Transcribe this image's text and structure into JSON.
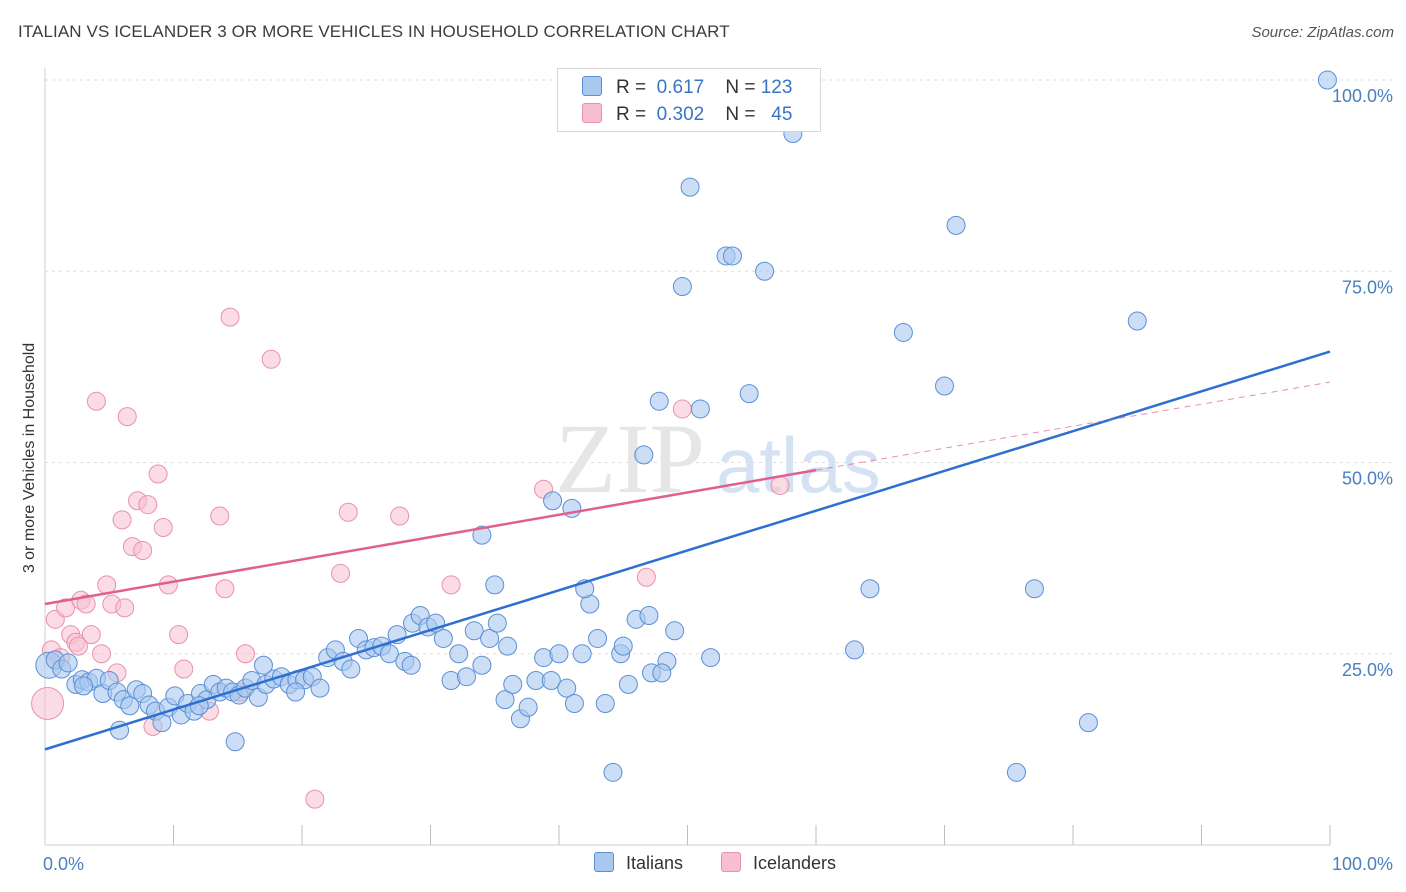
{
  "title": "ITALIAN VS ICELANDER 3 OR MORE VEHICLES IN HOUSEHOLD CORRELATION CHART",
  "source": "Source: ZipAtlas.com",
  "watermark": {
    "zip": "ZIP",
    "atlas": "atlas"
  },
  "legend": {
    "r_label": "R =",
    "n_label": "N =",
    "italians": {
      "r": "0.617",
      "n": "123"
    },
    "icelanders": {
      "r": "0.302",
      "n": "45"
    }
  },
  "colors": {
    "italians_fill": "#a9c8ee",
    "italians_stroke": "#5b8fd6",
    "italians_line": "#2f6fd0",
    "icelanders_fill": "#f7bfd0",
    "icelanders_stroke": "#e891ae",
    "icelanders_line": "#e0608d",
    "grid": "#dedede",
    "tick_text": "#4a7fc1"
  },
  "chart_data": {
    "type": "scatter",
    "title": "ITALIAN VS ICELANDER 3 OR MORE VEHICLES IN HOUSEHOLD CORRELATION CHART",
    "xlabel": "",
    "ylabel": "3 or more Vehicles in Household",
    "xlim": [
      0,
      100
    ],
    "ylim": [
      0,
      102
    ],
    "x_tick_labels": [
      "0.0%",
      "100.0%"
    ],
    "y_ticks": [
      25,
      50,
      75,
      100
    ],
    "y_tick_labels": [
      "25.0%",
      "50.0%",
      "75.0%",
      "100.0%"
    ],
    "grid": "horizontal dashed",
    "legend_position": "bottom-center",
    "series": [
      {
        "name": "Italians",
        "r": 0.617,
        "n": 123,
        "trend": {
          "x": [
            0,
            100
          ],
          "y": [
            12.5,
            64.5
          ]
        },
        "points": [
          [
            0.3,
            23.5
          ],
          [
            0.8,
            24.2
          ],
          [
            1.3,
            23.0
          ],
          [
            1.8,
            23.8
          ],
          [
            2.4,
            21.0
          ],
          [
            2.9,
            21.6
          ],
          [
            3.4,
            21.3
          ],
          [
            4.0,
            21.8
          ],
          [
            4.5,
            19.8
          ],
          [
            5.0,
            21.5
          ],
          [
            5.6,
            20.0
          ],
          [
            6.1,
            19.0
          ],
          [
            6.6,
            18.2
          ],
          [
            7.1,
            20.3
          ],
          [
            7.6,
            19.8
          ],
          [
            8.1,
            18.3
          ],
          [
            8.6,
            17.5
          ],
          [
            9.1,
            16.0
          ],
          [
            9.6,
            18.0
          ],
          [
            10.1,
            19.5
          ],
          [
            10.6,
            17.0
          ],
          [
            11.1,
            18.5
          ],
          [
            11.6,
            17.5
          ],
          [
            12.1,
            19.8
          ],
          [
            12.6,
            19.0
          ],
          [
            13.1,
            21.0
          ],
          [
            13.6,
            20.0
          ],
          [
            14.1,
            20.5
          ],
          [
            14.6,
            20.0
          ],
          [
            15.1,
            19.6
          ],
          [
            15.6,
            20.5
          ],
          [
            16.1,
            21.5
          ],
          [
            16.6,
            19.3
          ],
          [
            17.2,
            21.0
          ],
          [
            17.8,
            21.7
          ],
          [
            18.4,
            22.0
          ],
          [
            19.0,
            21.0
          ],
          [
            19.6,
            21.6
          ],
          [
            20.2,
            21.6
          ],
          [
            20.8,
            22.0
          ],
          [
            21.4,
            20.5
          ],
          [
            22.0,
            24.5
          ],
          [
            22.6,
            25.5
          ],
          [
            23.2,
            24.0
          ],
          [
            23.8,
            23.0
          ],
          [
            24.4,
            27.0
          ],
          [
            25.0,
            25.5
          ],
          [
            25.6,
            25.8
          ],
          [
            26.2,
            26.0
          ],
          [
            26.8,
            25.0
          ],
          [
            27.4,
            27.5
          ],
          [
            28.0,
            24.0
          ],
          [
            28.6,
            29.0
          ],
          [
            29.2,
            30.0
          ],
          [
            29.8,
            28.5
          ],
          [
            30.4,
            29.0
          ],
          [
            31.0,
            27.0
          ],
          [
            31.6,
            21.5
          ],
          [
            32.2,
            25.0
          ],
          [
            32.8,
            22.0
          ],
          [
            33.4,
            28.0
          ],
          [
            34.0,
            23.5
          ],
          [
            34.6,
            27.0
          ],
          [
            35.2,
            29.0
          ],
          [
            35.8,
            19.0
          ],
          [
            36.4,
            21.0
          ],
          [
            37.0,
            16.5
          ],
          [
            37.6,
            18.0
          ],
          [
            38.2,
            21.5
          ],
          [
            38.8,
            24.5
          ],
          [
            39.4,
            21.5
          ],
          [
            40.0,
            25.0
          ],
          [
            40.6,
            20.5
          ],
          [
            41.2,
            18.5
          ],
          [
            41.8,
            25.0
          ],
          [
            42.4,
            31.5
          ],
          [
            43.0,
            27.0
          ],
          [
            43.6,
            18.5
          ],
          [
            44.2,
            9.5
          ],
          [
            44.8,
            25.0
          ],
          [
            45.4,
            21.0
          ],
          [
            46.0,
            29.5
          ],
          [
            46.6,
            51.0
          ],
          [
            47.2,
            22.5
          ],
          [
            47.8,
            58.0
          ],
          [
            48.4,
            24.0
          ],
          [
            49.0,
            28.0
          ],
          [
            49.6,
            73.0
          ],
          [
            50.2,
            86.0
          ],
          [
            51.0,
            57.0
          ],
          [
            53.0,
            77.0
          ],
          [
            53.5,
            77.0
          ],
          [
            54.8,
            59.0
          ],
          [
            56.0,
            75.0
          ],
          [
            58.2,
            93.0
          ],
          [
            63.0,
            25.5
          ],
          [
            64.2,
            33.5
          ],
          [
            66.8,
            67.0
          ],
          [
            70.0,
            60.0
          ],
          [
            70.9,
            81.0
          ],
          [
            75.6,
            9.5
          ],
          [
            77.0,
            33.5
          ],
          [
            81.2,
            16.0
          ],
          [
            85.0,
            68.5
          ],
          [
            99.8,
            100.0
          ],
          [
            3.0,
            20.8
          ],
          [
            5.8,
            15.0
          ],
          [
            14.8,
            13.5
          ],
          [
            34.0,
            40.5
          ],
          [
            35.0,
            34.0
          ],
          [
            36.0,
            26.0
          ],
          [
            42.0,
            33.5
          ],
          [
            45.0,
            26.0
          ],
          [
            51.8,
            24.5
          ],
          [
            12.0,
            18.2
          ],
          [
            17.0,
            23.5
          ],
          [
            19.5,
            20.0
          ],
          [
            28.5,
            23.5
          ],
          [
            47.0,
            30.0
          ],
          [
            41.0,
            44.0
          ],
          [
            39.5,
            45.0
          ],
          [
            48.0,
            22.5
          ]
        ]
      },
      {
        "name": "Icelanders",
        "r": 0.302,
        "n": 45,
        "trend": {
          "x": [
            0,
            60
          ],
          "y": [
            31.5,
            49.0
          ]
        },
        "extension": {
          "x": [
            60,
            100
          ],
          "y": [
            49.0,
            60.5
          ]
        },
        "points": [
          [
            0.2,
            18.5
          ],
          [
            0.5,
            25.5
          ],
          [
            0.8,
            29.5
          ],
          [
            1.2,
            24.5
          ],
          [
            1.6,
            31.0
          ],
          [
            2.0,
            27.5
          ],
          [
            2.4,
            26.5
          ],
          [
            2.8,
            32.0
          ],
          [
            3.2,
            31.5
          ],
          [
            3.6,
            27.5
          ],
          [
            4.0,
            58.0
          ],
          [
            4.4,
            25.0
          ],
          [
            4.8,
            34.0
          ],
          [
            5.2,
            31.5
          ],
          [
            5.6,
            22.5
          ],
          [
            6.0,
            42.5
          ],
          [
            6.4,
            56.0
          ],
          [
            6.8,
            39.0
          ],
          [
            7.2,
            45.0
          ],
          [
            7.6,
            38.5
          ],
          [
            8.0,
            44.5
          ],
          [
            8.4,
            15.5
          ],
          [
            8.8,
            48.5
          ],
          [
            9.2,
            41.5
          ],
          [
            9.6,
            34.0
          ],
          [
            10.4,
            27.5
          ],
          [
            10.8,
            23.0
          ],
          [
            12.8,
            17.5
          ],
          [
            13.6,
            43.0
          ],
          [
            14.0,
            33.5
          ],
          [
            14.4,
            69.0
          ],
          [
            15.2,
            20.0
          ],
          [
            15.6,
            25.0
          ],
          [
            17.6,
            63.5
          ],
          [
            21.0,
            6.0
          ],
          [
            23.0,
            35.5
          ],
          [
            23.6,
            43.5
          ],
          [
            27.6,
            43.0
          ],
          [
            31.6,
            34.0
          ],
          [
            38.8,
            46.5
          ],
          [
            46.8,
            35.0
          ],
          [
            49.6,
            57.0
          ],
          [
            57.2,
            47.0
          ],
          [
            2.6,
            26.0
          ],
          [
            6.2,
            31.0
          ]
        ]
      }
    ]
  }
}
